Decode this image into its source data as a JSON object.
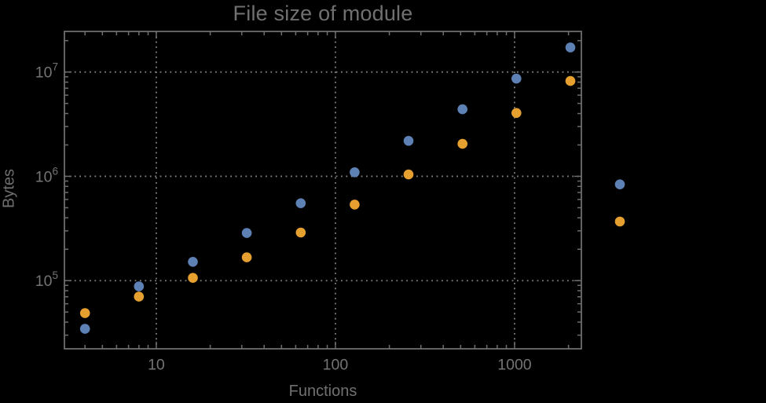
{
  "chart_data": {
    "type": "scatter",
    "title": "File size of module",
    "xlabel": "Functions",
    "ylabel": "Bytes",
    "xscale": "log",
    "yscale": "log",
    "xlim": [
      3.07,
      2360
    ],
    "ylim": [
      22200,
      24500000
    ],
    "grid": "major gridlines only, dotted gray, on",
    "legend_position": "outside right of frame, markers only (no visible labels)",
    "x": [
      4,
      8,
      16,
      32,
      64,
      128,
      256,
      512,
      1024,
      2048
    ],
    "series": [
      {
        "name": "blue",
        "color": "#5E81B5",
        "values": [
          34500,
          88000,
          151500,
          286000,
          552000,
          1093000,
          2186000,
          4396000,
          8644000,
          17210000
        ]
      },
      {
        "name": "orange",
        "color": "#E5A02F",
        "values": [
          48800,
          70200,
          106200,
          167000,
          289000,
          536000,
          1042000,
          2050000,
          4052000,
          8206000
        ]
      }
    ],
    "x_ticks": [
      {
        "value": 10,
        "label": "10"
      },
      {
        "value": 100,
        "label": "100"
      },
      {
        "value": 1000,
        "label": "1000"
      }
    ],
    "y_ticks": [
      {
        "value": 100000,
        "base": "10",
        "exp": "5"
      },
      {
        "value": 1000000,
        "base": "10",
        "exp": "6"
      },
      {
        "value": 10000000,
        "base": "10",
        "exp": "7"
      }
    ]
  }
}
